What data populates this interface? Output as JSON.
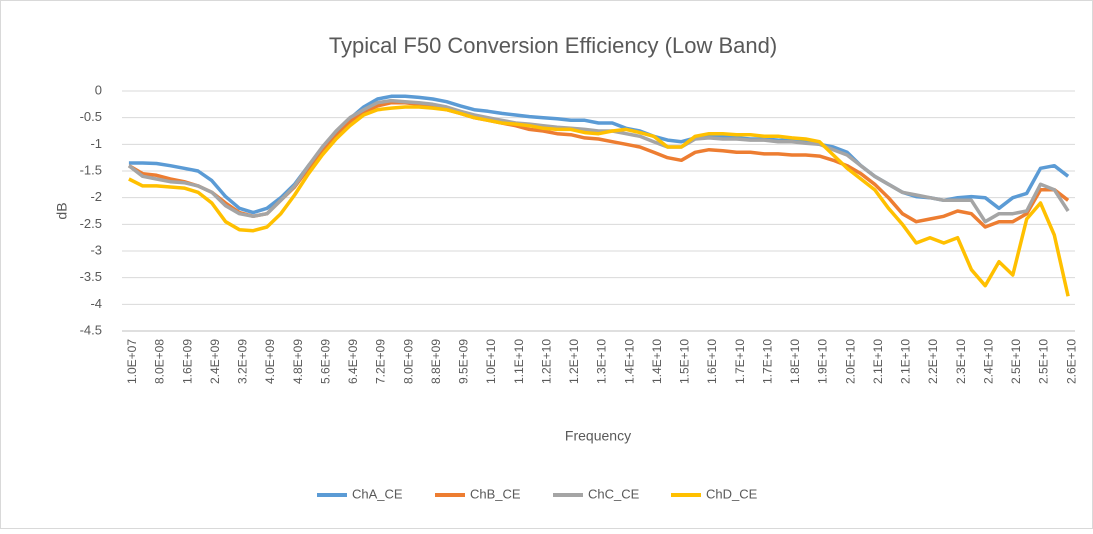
{
  "chart_data": {
    "type": "line",
    "title": "Typical F50 Conversion Efficiency (Low Band)",
    "xlabel": "Frequency",
    "ylabel": "dB",
    "categories": [
      "1.0E+07",
      null,
      "8.0E+08",
      null,
      "1.6E+09",
      null,
      "2.4E+09",
      null,
      "3.2E+09",
      null,
      "4.0E+09",
      null,
      "4.8E+09",
      null,
      "5.6E+09",
      null,
      "6.4E+09",
      null,
      "7.2E+09",
      null,
      "8.0E+09",
      null,
      "8.8E+09",
      null,
      "9.5E+09",
      null,
      "1.0E+10",
      null,
      "1.1E+10",
      null,
      "1.2E+10",
      null,
      "1.2E+10",
      null,
      "1.3E+10",
      null,
      "1.4E+10",
      null,
      "1.4E+10",
      null,
      "1.5E+10",
      null,
      "1.6E+10",
      null,
      "1.7E+10",
      null,
      "1.7E+10",
      null,
      "1.8E+10",
      null,
      "1.9E+10",
      null,
      "2.0E+10",
      null,
      "2.1E+10",
      null,
      "2.1E+10",
      null,
      "2.2E+10",
      null,
      "2.3E+10",
      null,
      "2.4E+10",
      null,
      "2.5E+10",
      null,
      "2.5E+10",
      null,
      "2.6E+10"
    ],
    "series": [
      {
        "name": "ChA_CE",
        "color": "#5b9bd5",
        "values": [
          -1.35,
          -1.35,
          -1.36,
          -1.4,
          -1.45,
          -1.5,
          -1.68,
          -1.98,
          -2.2,
          -2.28,
          -2.2,
          -2.0,
          -1.75,
          -1.4,
          -1.1,
          -0.8,
          -0.52,
          -0.3,
          -0.15,
          -0.1,
          -0.1,
          -0.12,
          -0.15,
          -0.2,
          -0.28,
          -0.35,
          -0.38,
          -0.42,
          -0.45,
          -0.48,
          -0.5,
          -0.52,
          -0.55,
          -0.55,
          -0.6,
          -0.6,
          -0.7,
          -0.75,
          -0.85,
          -0.92,
          -0.95,
          -0.88,
          -0.85,
          -0.85,
          -0.88,
          -0.9,
          -0.9,
          -0.92,
          -0.93,
          -0.95,
          -1.0,
          -1.05,
          -1.15,
          -1.4,
          -1.6,
          -1.75,
          -1.9,
          -1.98,
          -2.0,
          -2.05,
          -2.0,
          -1.98,
          -2.0,
          -2.2,
          -2.0,
          -1.92,
          -1.45,
          -1.4,
          -1.6
        ]
      },
      {
        "name": "ChB_CE",
        "color": "#ed7d31",
        "values": [
          -1.4,
          -1.55,
          -1.58,
          -1.65,
          -1.7,
          -1.78,
          -1.9,
          -2.1,
          -2.28,
          -2.35,
          -2.3,
          -2.05,
          -1.8,
          -1.45,
          -1.1,
          -0.85,
          -0.58,
          -0.4,
          -0.28,
          -0.22,
          -0.22,
          -0.25,
          -0.3,
          -0.35,
          -0.42,
          -0.5,
          -0.55,
          -0.6,
          -0.65,
          -0.72,
          -0.75,
          -0.8,
          -0.82,
          -0.88,
          -0.9,
          -0.95,
          -1.0,
          -1.05,
          -1.15,
          -1.25,
          -1.3,
          -1.15,
          -1.1,
          -1.12,
          -1.15,
          -1.15,
          -1.18,
          -1.18,
          -1.2,
          -1.2,
          -1.22,
          -1.3,
          -1.4,
          -1.55,
          -1.75,
          -2.0,
          -2.3,
          -2.45,
          -2.4,
          -2.35,
          -2.25,
          -2.3,
          -2.55,
          -2.45,
          -2.45,
          -2.3,
          -1.85,
          -1.85,
          -2.05
        ]
      },
      {
        "name": "ChC_CE",
        "color": "#a5a5a5",
        "values": [
          -1.4,
          -1.6,
          -1.65,
          -1.7,
          -1.72,
          -1.78,
          -1.9,
          -2.15,
          -2.3,
          -2.35,
          -2.3,
          -2.05,
          -1.78,
          -1.4,
          -1.05,
          -0.75,
          -0.5,
          -0.35,
          -0.22,
          -0.18,
          -0.2,
          -0.22,
          -0.25,
          -0.3,
          -0.38,
          -0.45,
          -0.5,
          -0.55,
          -0.6,
          -0.62,
          -0.65,
          -0.68,
          -0.7,
          -0.72,
          -0.75,
          -0.75,
          -0.8,
          -0.85,
          -0.95,
          -1.05,
          -1.05,
          -0.9,
          -0.88,
          -0.9,
          -0.9,
          -0.92,
          -0.92,
          -0.95,
          -0.95,
          -0.98,
          -1.0,
          -1.1,
          -1.2,
          -1.4,
          -1.6,
          -1.75,
          -1.9,
          -1.95,
          -2.0,
          -2.05,
          -2.05,
          -2.05,
          -2.45,
          -2.3,
          -2.3,
          -2.25,
          -1.75,
          -1.85,
          -2.25
        ]
      },
      {
        "name": "ChD_CE",
        "color": "#ffc000",
        "values": [
          -1.65,
          -1.78,
          -1.78,
          -1.8,
          -1.82,
          -1.9,
          -2.1,
          -2.45,
          -2.6,
          -2.62,
          -2.55,
          -2.3,
          -1.95,
          -1.55,
          -1.2,
          -0.9,
          -0.65,
          -0.45,
          -0.35,
          -0.32,
          -0.3,
          -0.3,
          -0.32,
          -0.35,
          -0.42,
          -0.5,
          -0.55,
          -0.6,
          -0.62,
          -0.65,
          -0.7,
          -0.72,
          -0.72,
          -0.78,
          -0.8,
          -0.75,
          -0.72,
          -0.78,
          -0.85,
          -1.05,
          -1.05,
          -0.85,
          -0.8,
          -0.8,
          -0.82,
          -0.82,
          -0.85,
          -0.85,
          -0.88,
          -0.9,
          -0.95,
          -1.2,
          -1.45,
          -1.65,
          -1.85,
          -2.2,
          -2.5,
          -2.85,
          -2.75,
          -2.85,
          -2.75,
          -3.35,
          -3.65,
          -3.2,
          -3.45,
          -2.4,
          -2.1,
          -2.7,
          -3.85
        ]
      }
    ],
    "ylim": [
      -4.5,
      0
    ],
    "yticks": [
      0,
      -0.5,
      -1,
      -1.5,
      -2,
      -2.5,
      -3,
      -3.5,
      -4,
      -4.5
    ],
    "grid": true,
    "legend": "bottom"
  }
}
